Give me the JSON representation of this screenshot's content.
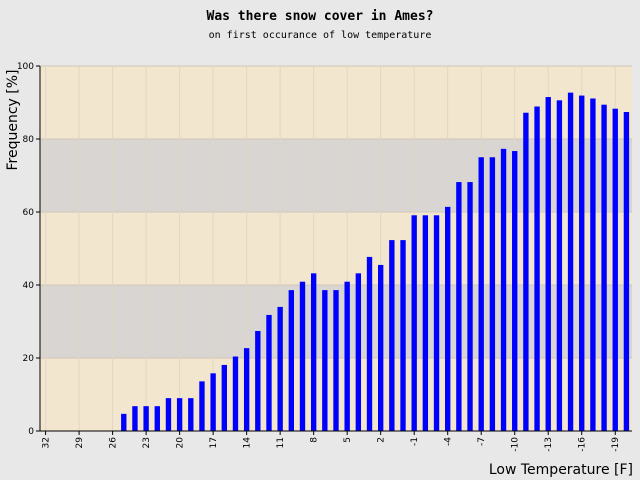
{
  "chart_data": {
    "type": "bar",
    "title": "Was there snow cover in Ames?",
    "subtitle": "on first occurance of low temperature",
    "xlabel": "Low Temperature [F]",
    "ylabel": "Frequency [%]",
    "ylim": [
      0,
      100
    ],
    "yticks": [
      0,
      20,
      40,
      60,
      80,
      100
    ],
    "xticks": [
      32,
      29,
      26,
      23,
      20,
      17,
      14,
      11,
      8,
      5,
      2,
      -1,
      -4,
      -7,
      -10,
      -13,
      -16,
      -19
    ],
    "x": [
      32,
      31,
      30,
      29,
      28,
      27,
      26,
      25,
      24,
      23,
      22,
      21,
      20,
      19,
      18,
      17,
      16,
      15,
      14,
      13,
      12,
      11,
      10,
      9,
      8,
      7,
      6,
      5,
      4,
      3,
      2,
      1,
      0,
      -1,
      -2,
      -3,
      -4,
      -5,
      -6,
      -7,
      -8,
      -9,
      -10,
      -11,
      -12,
      -13,
      -14,
      -15,
      -16,
      -17,
      -18,
      -19,
      -20
    ],
    "values": [
      0,
      0,
      0,
      0,
      0,
      0,
      0,
      4.7,
      6.8,
      6.8,
      6.8,
      9.0,
      9.0,
      9.0,
      13.6,
      15.8,
      18.1,
      20.4,
      22.7,
      27.4,
      31.8,
      34.0,
      38.6,
      40.9,
      43.2,
      38.6,
      38.6,
      40.9,
      43.2,
      47.7,
      45.5,
      52.3,
      52.3,
      59.1,
      59.1,
      59.1,
      61.4,
      68.2,
      68.2,
      75.0,
      75.0,
      77.3,
      76.7,
      87.2,
      88.9,
      91.5,
      90.6,
      92.7,
      91.9,
      91.1,
      89.4,
      88.3,
      87.4
    ],
    "bar_color": "#0000ff",
    "band_colors": [
      "#f3e6cf",
      "#d8d5d2"
    ],
    "background_color": "#e8e8e8",
    "grid": true
  }
}
